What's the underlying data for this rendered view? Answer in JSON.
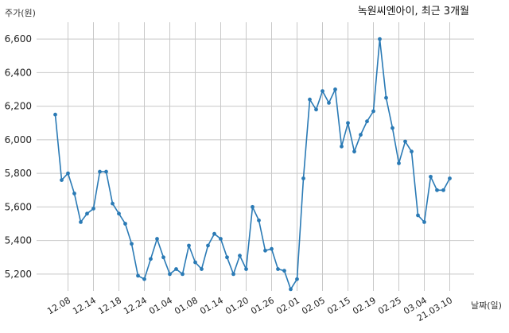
{
  "chart_data": {
    "type": "line",
    "title": "녹원씨엔아이, 최근 3개월",
    "ylabel": "주가(원)",
    "xlabel": "날짜(일)",
    "ylim": [
      5100,
      6700
    ],
    "yticks": [
      5200,
      5400,
      5600,
      5800,
      6000,
      6200,
      6400,
      6600
    ],
    "ytick_labels": [
      "5,200",
      "5,400",
      "5,600",
      "5,800",
      "6,000",
      "6,200",
      "6,400",
      "6,600"
    ],
    "xtick_labels": [
      "12.08",
      "12.14",
      "12.18",
      "12.24",
      "01.04",
      "01.08",
      "01.14",
      "01.20",
      "01.26",
      "02.01",
      "02.05",
      "02.15",
      "02.19",
      "02.25",
      "03.04",
      "21.03.10"
    ],
    "xtick_index": [
      2,
      6,
      10,
      14,
      18,
      22,
      26,
      30,
      34,
      38,
      42,
      46,
      50,
      54,
      58,
      62
    ],
    "grid": true,
    "line_color": "#2a7ab5",
    "values": [
      6150,
      5760,
      5800,
      5680,
      5510,
      5560,
      5590,
      5810,
      5810,
      5620,
      5560,
      5500,
      5380,
      5190,
      5170,
      5290,
      5410,
      5300,
      5200,
      5230,
      5200,
      5370,
      5270,
      5230,
      5370,
      5440,
      5410,
      5300,
      5200,
      5310,
      5230,
      5600,
      5520,
      5340,
      5350,
      5230,
      5220,
      5110,
      5170,
      5770,
      6240,
      6180,
      6290,
      6220,
      6300,
      5960,
      6100,
      5930,
      6030,
      6110,
      6170,
      6600,
      6250,
      6070,
      5860,
      5990,
      5930,
      5550,
      5510,
      5780,
      5700,
      5700,
      5770
    ]
  }
}
